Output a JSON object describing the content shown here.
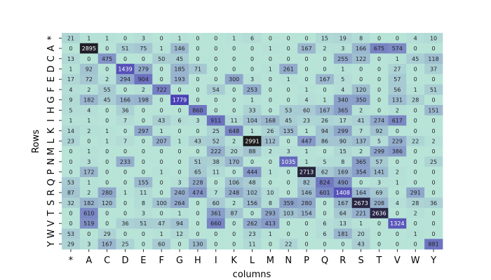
{
  "chart_data": {
    "type": "heatmap",
    "title": "",
    "xlabel": "columns",
    "ylabel": "Rows",
    "x_categories": [
      "*",
      "A",
      "C",
      "D",
      "E",
      "F",
      "G",
      "H",
      "I",
      "K",
      "L",
      "M",
      "N",
      "P",
      "Q",
      "R",
      "S",
      "T",
      "V",
      "W",
      "Y"
    ],
    "y_categories": [
      "*",
      "A",
      "C",
      "D",
      "E",
      "F",
      "G",
      "H",
      "I",
      "K",
      "L",
      "M",
      "N",
      "P",
      "Q",
      "R",
      "S",
      "T",
      "V",
      "W",
      "Y"
    ],
    "values": [
      [
        21,
        1,
        1,
        0,
        3,
        0,
        1,
        0,
        0,
        1,
        6,
        0,
        0,
        0,
        15,
        19,
        8,
        0,
        0,
        4,
        10
      ],
      [
        0,
        2895,
        0,
        51,
        75,
        1,
        146,
        0,
        0,
        0,
        0,
        1,
        0,
        167,
        2,
        3,
        166,
        675,
        574,
        0,
        0
      ],
      [
        13,
        0,
        475,
        0,
        0,
        50,
        45,
        0,
        0,
        0,
        0,
        0,
        0,
        0,
        0,
        255,
        122,
        0,
        1,
        45,
        118
      ],
      [
        1,
        92,
        0,
        1439,
        279,
        0,
        185,
        71,
        0,
        0,
        0,
        1,
        261,
        0,
        0,
        1,
        0,
        0,
        27,
        0,
        37
      ],
      [
        17,
        72,
        2,
        294,
        904,
        0,
        193,
        0,
        0,
        300,
        3,
        0,
        1,
        0,
        167,
        5,
        0,
        0,
        57,
        0,
        0
      ],
      [
        4,
        2,
        55,
        0,
        2,
        722,
        0,
        0,
        54,
        0,
        253,
        0,
        0,
        1,
        0,
        4,
        120,
        0,
        56,
        1,
        51
      ],
      [
        9,
        182,
        45,
        166,
        198,
        0,
        1779,
        0,
        0,
        0,
        1,
        0,
        0,
        4,
        1,
        340,
        350,
        0,
        131,
        28,
        0
      ],
      [
        5,
        4,
        0,
        36,
        0,
        0,
        0,
        860,
        0,
        0,
        33,
        0,
        53,
        60,
        167,
        365,
        2,
        0,
        2,
        0,
        151
      ],
      [
        1,
        1,
        0,
        7,
        0,
        43,
        6,
        3,
        911,
        11,
        104,
        168,
        45,
        23,
        26,
        17,
        41,
        274,
        617,
        0,
        0
      ],
      [
        14,
        2,
        1,
        0,
        297,
        1,
        0,
        0,
        25,
        648,
        1,
        26,
        135,
        1,
        94,
        299,
        7,
        92,
        0,
        0,
        0
      ],
      [
        23,
        0,
        1,
        7,
        0,
        207,
        1,
        43,
        52,
        2,
        2991,
        112,
        0,
        447,
        86,
        90,
        137,
        5,
        229,
        22,
        2
      ],
      [
        0,
        1,
        0,
        0,
        0,
        0,
        0,
        0,
        222,
        20,
        88,
        2,
        3,
        1,
        0,
        15,
        2,
        299,
        386,
        0,
        0
      ],
      [
        0,
        3,
        0,
        233,
        0,
        0,
        0,
        51,
        38,
        170,
        0,
        0,
        1035,
        1,
        5,
        8,
        365,
        57,
        0,
        0,
        25
      ],
      [
        0,
        172,
        0,
        0,
        0,
        1,
        0,
        65,
        11,
        0,
        444,
        1,
        0,
        2713,
        62,
        169,
        354,
        141,
        2,
        0,
        0
      ],
      [
        53,
        1,
        0,
        0,
        155,
        0,
        3,
        228,
        0,
        106,
        48,
        0,
        0,
        82,
        824,
        490,
        0,
        3,
        1,
        0,
        0
      ],
      [
        87,
        2,
        280,
        1,
        11,
        0,
        240,
        474,
        7,
        248,
        102,
        10,
        0,
        146,
        601,
        1408,
        164,
        69,
        0,
        291,
        0
      ],
      [
        32,
        182,
        120,
        0,
        8,
        100,
        264,
        0,
        60,
        2,
        156,
        8,
        359,
        280,
        0,
        167,
        2673,
        208,
        4,
        28,
        36
      ],
      [
        0,
        610,
        0,
        0,
        3,
        0,
        1,
        0,
        361,
        87,
        0,
        293,
        103,
        154,
        0,
        64,
        221,
        2636,
        0,
        2,
        0
      ],
      [
        0,
        519,
        0,
        36,
        51,
        47,
        94,
        0,
        660,
        0,
        262,
        413,
        0,
        0,
        6,
        13,
        1,
        0,
        1324,
        0,
        0
      ],
      [
        53,
        0,
        29,
        0,
        0,
        1,
        12,
        0,
        0,
        0,
        23,
        1,
        0,
        0,
        6,
        181,
        20,
        0,
        0,
        1,
        0
      ],
      [
        29,
        3,
        167,
        25,
        0,
        60,
        0,
        130,
        0,
        0,
        11,
        0,
        22,
        0,
        0,
        0,
        43,
        0,
        0,
        0,
        881
      ]
    ],
    "vmin": 0,
    "vmax": 3000,
    "colorscale": [
      "#b8e4d8",
      "#4a3fb5",
      "#1c1c1c"
    ],
    "grid": false
  }
}
